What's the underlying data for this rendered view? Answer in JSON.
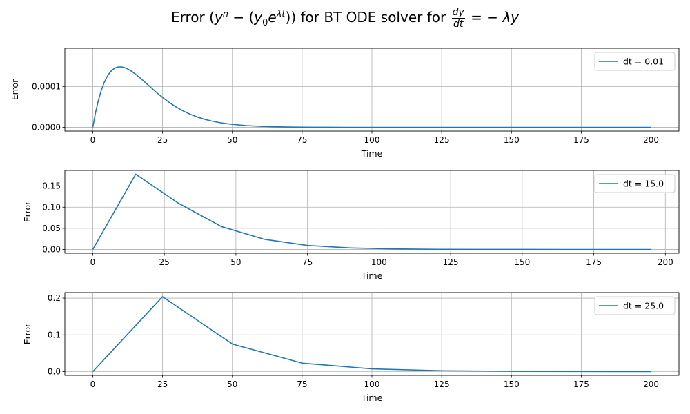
{
  "title": {
    "prefix": "Error (",
    "yn_base": "y",
    "yn_exp": "n",
    "minus": " − (",
    "y0_base": "y",
    "y0_sub": "0",
    "e": "e",
    "e_exp": "λt",
    "mid": ")) for BT ODE solver for ",
    "frac_num": "dy",
    "frac_den": "dt",
    "suffix": " = − λy"
  },
  "colors": {
    "line": "#1f77b4",
    "grid": "#b0b0b0",
    "axis": "#000000",
    "legend_border": "#cccccc"
  },
  "chart_data": [
    {
      "type": "line",
      "xlabel": "Time",
      "ylabel": "Error",
      "xlim": [
        -10,
        210
      ],
      "ylim": [
        -9.2e-06,
        0.0001934
      ],
      "xticks": [
        0,
        25,
        50,
        75,
        100,
        125,
        150,
        175,
        200
      ],
      "yticks": [
        0,
        0.0001
      ],
      "ytick_labels": [
        "0.0000",
        "0.0001"
      ],
      "grid": true,
      "legend_position": "top-right",
      "series": [
        {
          "name": "dt = 0.01",
          "x": [
            0,
            1,
            2,
            3,
            4,
            5,
            6,
            7,
            8,
            9,
            10,
            11,
            12,
            13,
            14,
            15,
            17,
            19,
            21,
            23,
            25,
            27.5,
            30,
            32.5,
            35,
            37.5,
            40,
            42.5,
            45,
            47.5,
            50,
            55,
            60,
            65,
            70,
            75,
            80,
            85,
            90,
            95,
            100,
            110,
            120,
            130,
            140,
            150,
            160,
            170,
            180,
            190,
            200
          ],
          "y": [
            0,
            3.63e-05,
            6.58e-05,
            8.95e-05,
            0.0001081,
            0.0001224,
            0.0001331,
            0.0001405,
            0.0001452,
            0.0001476,
            0.000148,
            0.0001469,
            0.0001445,
            0.000141,
            0.0001367,
            0.0001318,
            0.0001207,
            0.0001086,
            9.64e-05,
            8.44e-05,
            7.31e-05,
            6.04e-05,
            4.92e-05,
            3.97e-05,
            3.17e-05,
            2.51e-05,
            1.98e-05,
            1.55e-05,
            1.21e-05,
            9.4e-06,
            7.3e-06,
            4.3e-06,
            2.5e-06,
            1.5e-06,
            8e-07,
            5e-07,
            3e-07,
            2e-07,
            1e-07,
            1e-07,
            0.0,
            0.0,
            0.0,
            0.0,
            0.0,
            0.0,
            0.0,
            0.0,
            0.0,
            0.0,
            0.0
          ]
        }
      ]
    },
    {
      "type": "line",
      "xlabel": "Time",
      "ylabel": "Error",
      "xlim": [
        -9.75,
        204.75
      ],
      "ylim": [
        -0.0089,
        0.1869
      ],
      "xticks": [
        0,
        25,
        50,
        75,
        100,
        125,
        150,
        175,
        200
      ],
      "yticks": [
        0,
        0.05,
        0.1,
        0.15
      ],
      "ytick_labels": [
        "0.00",
        "0.05",
        "0.10",
        "0.15"
      ],
      "grid": true,
      "legend_position": "top-right",
      "series": [
        {
          "name": "dt = 15.0",
          "x": [
            0,
            15,
            30,
            45,
            60,
            75,
            90,
            105,
            120,
            135,
            150,
            165,
            180,
            195
          ],
          "y": [
            0,
            0.178,
            0.109,
            0.054,
            0.024,
            0.0095,
            0.0037,
            0.0014,
            0.0005,
            0.0002,
            0.0001,
            0.0,
            0.0,
            0.0
          ]
        }
      ]
    },
    {
      "type": "line",
      "xlabel": "Time",
      "ylabel": "Error",
      "xlim": [
        -10,
        210
      ],
      "ylim": [
        -0.0103,
        0.2151
      ],
      "xticks": [
        0,
        25,
        50,
        75,
        100,
        125,
        150,
        175,
        200
      ],
      "yticks": [
        0,
        0.1,
        0.2
      ],
      "ytick_labels": [
        "0.0",
        "0.1",
        "0.2"
      ],
      "grid": true,
      "legend_position": "top-right",
      "series": [
        {
          "name": "dt = 25.0",
          "x": [
            0,
            25,
            50,
            75,
            100,
            125,
            150,
            175,
            200
          ],
          "y": [
            0,
            0.204,
            0.075,
            0.023,
            0.0075,
            0.0024,
            0.0008,
            0.0003,
            0.0001
          ]
        }
      ]
    }
  ]
}
